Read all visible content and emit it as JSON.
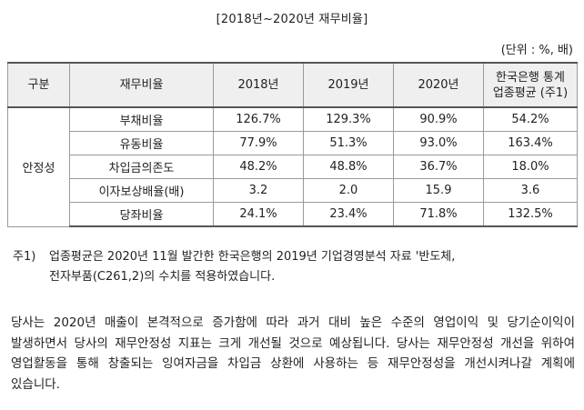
{
  "title": "[2018년~2020년 재무비율]",
  "unit": "(단위 : %, 배)",
  "table": {
    "headers": {
      "group": "구분",
      "ratio": "재무비율",
      "y2018": "2018년",
      "y2019": "2019년",
      "y2020": "2020년",
      "bank_line1": "한국은행 통계",
      "bank_line2": "업종평균 (주1)"
    },
    "group_label": "안정성",
    "rows": [
      {
        "name": "부채비율",
        "y2018": "126.7%",
        "y2019": "129.3%",
        "y2020": "90.9%",
        "bank": "54.2%"
      },
      {
        "name": "유동비율",
        "y2018": "77.9%",
        "y2019": "51.3%",
        "y2020": "93.0%",
        "bank": "163.4%"
      },
      {
        "name": "차입금의존도",
        "y2018": "48.2%",
        "y2019": "48.8%",
        "y2020": "36.7%",
        "bank": "18.0%"
      },
      {
        "name": "이자보상배율(배)",
        "y2018": "3.2",
        "y2019": "2.0",
        "y2020": "15.9",
        "bank": "3.6"
      },
      {
        "name": "당좌비율",
        "y2018": "24.1%",
        "y2019": "23.4%",
        "y2020": "71.8%",
        "bank": "132.5%"
      }
    ]
  },
  "note": {
    "label": "주1)",
    "line1": "업종평균은 2020년 11월 발간한 한국은행의 2019년 기업경영분석 자료 '반도체,",
    "line2": "전자부품(C261,2)의 수치를 적용하였습니다."
  },
  "paragraph": "당사는 2020년 매출이 본격적으로 증가함에 따라 과거 대비 높은 수준의 영업이익 및 당기순이익이 발생하면서 당사의 재무안정성 지표는 크게 개선될 것으로 예상됩니다. 당사는 재무안정성 개선을 위하여 영업활동을 통해 창출되는 잉여자금을 차입금 상환에 사용하는 등 재무안정성을 개선시켜나갈 계획에 있습니다."
}
